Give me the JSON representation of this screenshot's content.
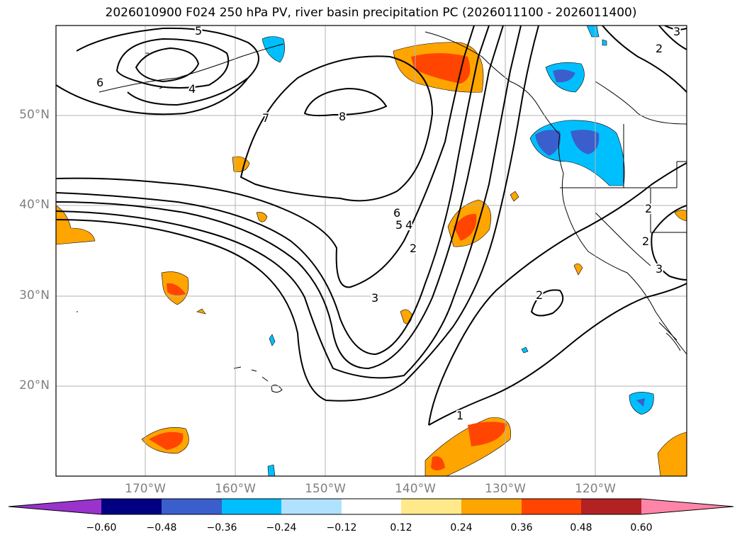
{
  "title": "2026010900 F024 250 hPa PV, river basin precipitation PC (2026011100 - 2026011400)",
  "latitude_labels": [
    "50°N",
    "40°N",
    "30°N",
    "20°N"
  ],
  "longitude_labels": [
    "170°W",
    "160°W",
    "150°W",
    "140°W",
    "130°W",
    "120°W"
  ],
  "contour_labels": [
    "5",
    "6",
    "4",
    "7",
    "8",
    "6",
    "5",
    "4",
    "2",
    "3",
    "2",
    "1",
    "2",
    "2",
    "3",
    "3",
    "2"
  ],
  "colorbar": {
    "ticks": [
      "−0.60",
      "−0.48",
      "−0.36",
      "−0.24",
      "−0.12",
      "0.12",
      "0.24",
      "0.36",
      "0.48",
      "0.60"
    ],
    "colors": [
      "#9933cc",
      "#000080",
      "#3a5fcd",
      "#00bfff",
      "#b0e2ff",
      "#ffffff",
      "#ffe98a",
      "#ffa500",
      "#ff4500",
      "#b22222",
      "#ff85a8"
    ]
  }
}
